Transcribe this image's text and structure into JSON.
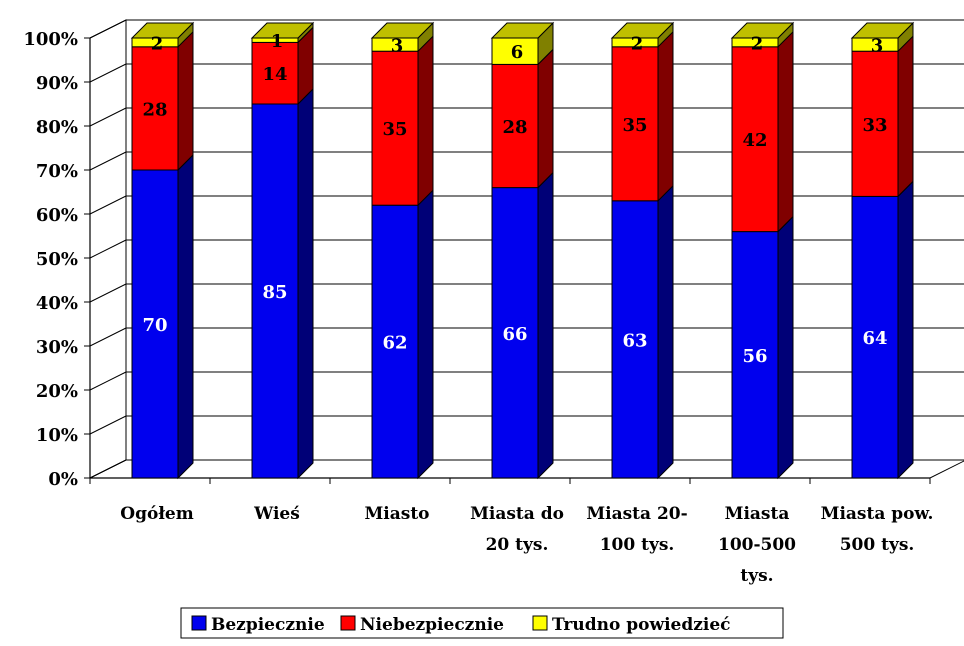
{
  "chart_data": {
    "type": "bar",
    "stacked": true,
    "three_d": true,
    "percent_axis": true,
    "grid": true,
    "legend_position": "bottom",
    "ylim": [
      0,
      100
    ],
    "y_ticks": [
      "0%",
      "10%",
      "20%",
      "30%",
      "40%",
      "50%",
      "60%",
      "70%",
      "80%",
      "90%",
      "100%"
    ],
    "categories": [
      [
        "Ogółem"
      ],
      [
        "Wieś"
      ],
      [
        "Miasto"
      ],
      [
        "Miasta do",
        "20 tys."
      ],
      [
        "Miasta 20-",
        "100 tys."
      ],
      [
        "Miasta",
        "100-500",
        "tys."
      ],
      [
        "Miasta pow.",
        "500 tys."
      ]
    ],
    "series": [
      {
        "name": "Bezpiecznie",
        "color": "#0000ee",
        "values": [
          70,
          85,
          62,
          66,
          63,
          56,
          64
        ]
      },
      {
        "name": "Niebezpiecznie",
        "color": "#ff0000",
        "values": [
          28,
          14,
          35,
          28,
          35,
          42,
          33
        ]
      },
      {
        "name": "Trudno powiedzieć",
        "color": "#ffff00",
        "values": [
          2,
          1,
          3,
          6,
          2,
          2,
          3
        ]
      }
    ]
  }
}
